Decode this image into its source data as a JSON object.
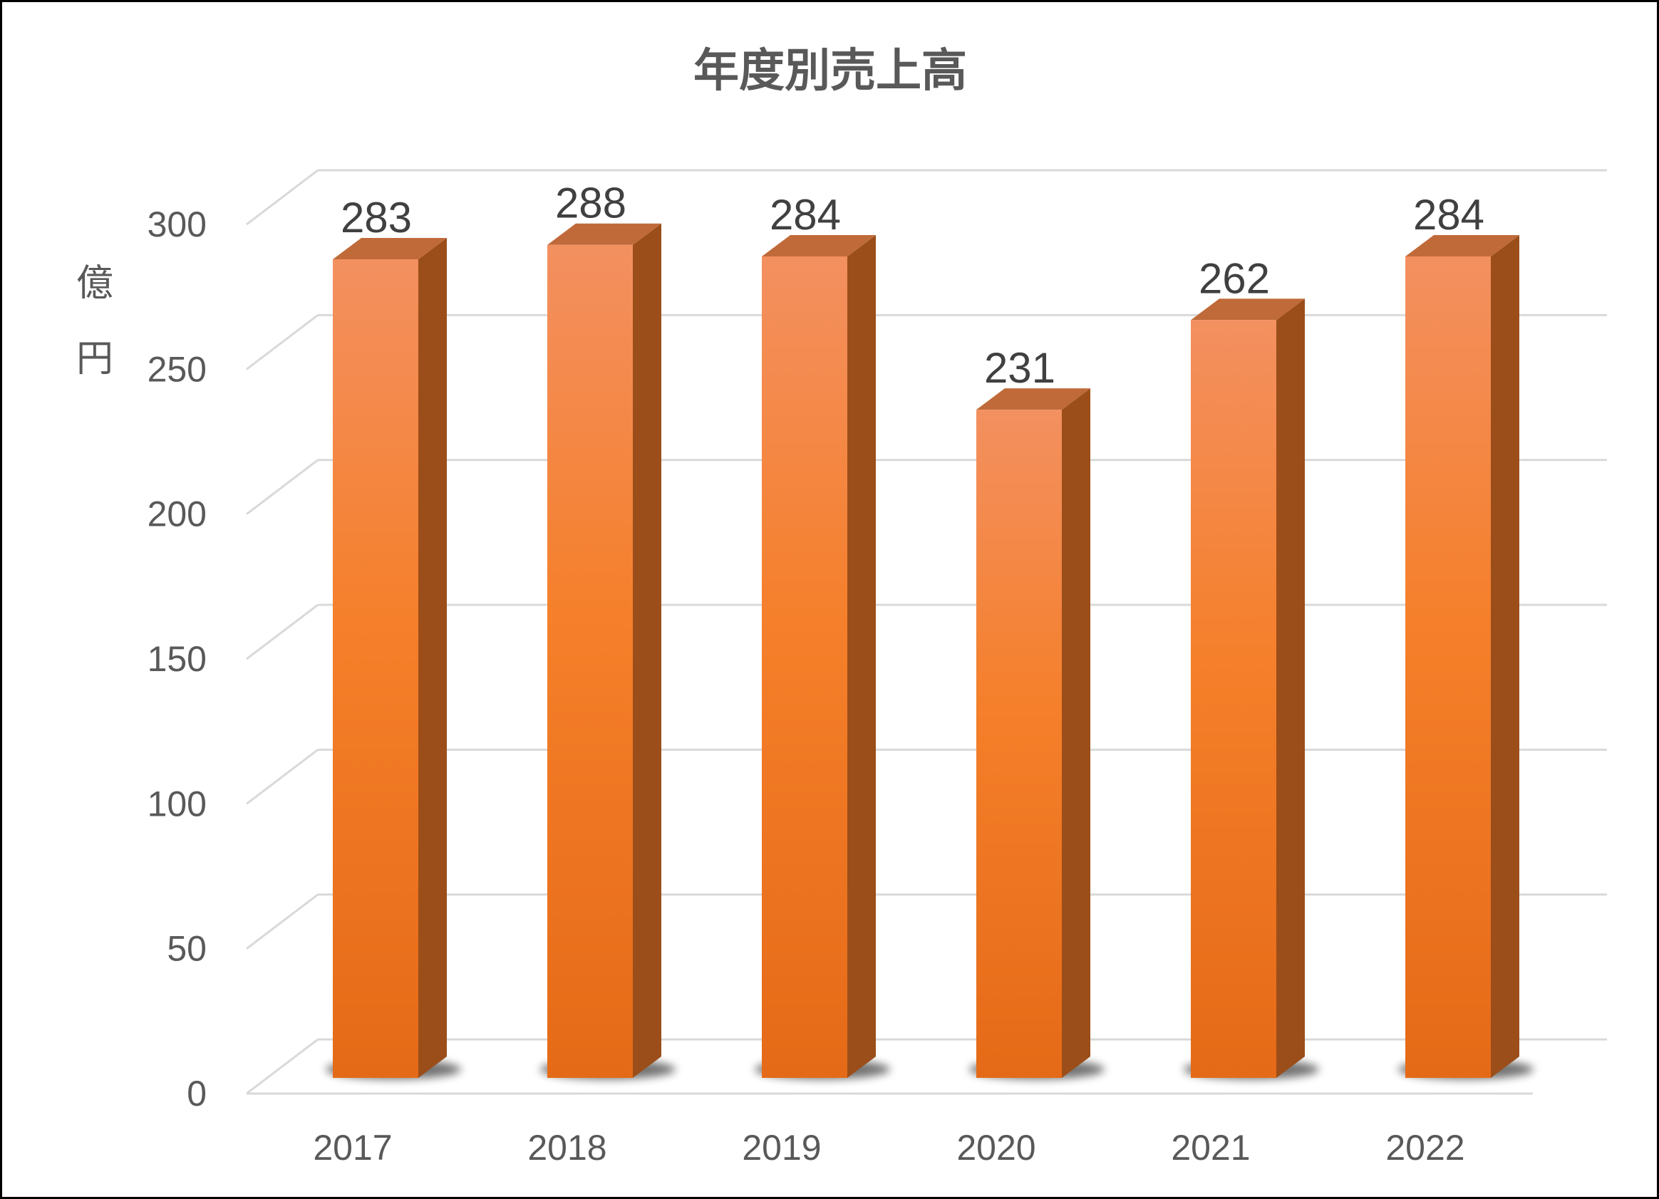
{
  "chart_data": {
    "type": "bar",
    "title": "年度別売上高",
    "ylabel": "億円",
    "ylim": [
      0,
      300
    ],
    "yticks": [
      "0",
      "50",
      "100",
      "150",
      "200",
      "250",
      "300"
    ],
    "categories": [
      "2017",
      "2018",
      "2019",
      "2020",
      "2021",
      "2022"
    ],
    "values": [
      283,
      288,
      284,
      231,
      262,
      284
    ],
    "data_labels": [
      "283",
      "288",
      "284",
      "231",
      "262",
      "284"
    ],
    "grid": true,
    "style": "3d-column",
    "colors": {
      "bar_front_top": "#f39060",
      "bar_front_mid": "#f57f2a",
      "bar_front_bottom": "#e56a17",
      "bar_side": "#9b4e1a",
      "bar_top": "#c06a3a",
      "grid": "#d9d9d9",
      "text": "#595959",
      "label": "#404040"
    }
  }
}
